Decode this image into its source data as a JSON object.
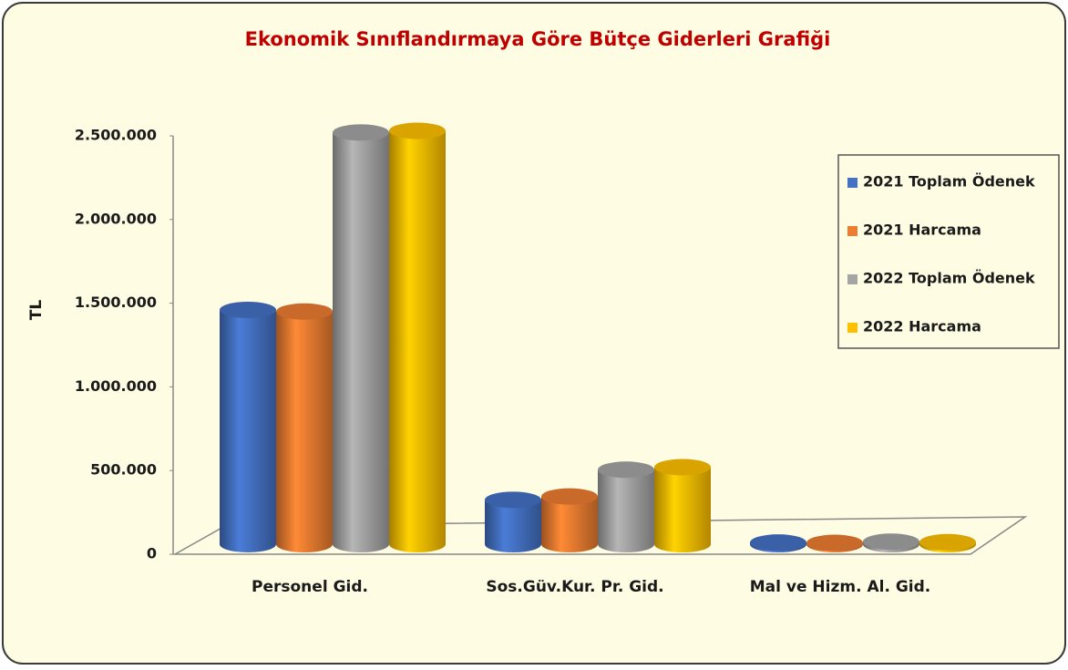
{
  "chart_data": {
    "type": "bar3d",
    "title": "Ekonomik Sınıflandırmaya Göre Bütçe Giderleri Grafiği",
    "y_label": "TL",
    "categories": [
      "Personel Gid.",
      "Sos.Güv.Kur. Pr. Gid.",
      "Mal ve Hizm. Al. Gid."
    ],
    "series": [
      {
        "name": "2021 Toplam Ödenek",
        "color": "#4472c4",
        "values": [
          1400000,
          265000,
          10000
        ]
      },
      {
        "name": "2021 Harcama",
        "color": "#ed7d31",
        "values": [
          1390000,
          285000,
          8000
        ]
      },
      {
        "name": "2022 Toplam Ödenek",
        "color": "#a5a5a5",
        "values": [
          2460000,
          445000,
          15000
        ]
      },
      {
        "name": "2022 Harcama",
        "color": "#ffc000",
        "values": [
          2470000,
          460000,
          12000
        ]
      }
    ],
    "ylim": [
      0,
      2500000
    ],
    "yticks": [
      0,
      {
        "value": 500000,
        "label": "500.000"
      },
      {
        "value": 1000000,
        "label": "1.000.000"
      },
      {
        "value": 1500000,
        "label": "1.500.000"
      },
      {
        "value": 2000000,
        "label": "2.000.000"
      },
      {
        "value": 2500000,
        "label": "2.500.000"
      }
    ],
    "legend": "right"
  }
}
